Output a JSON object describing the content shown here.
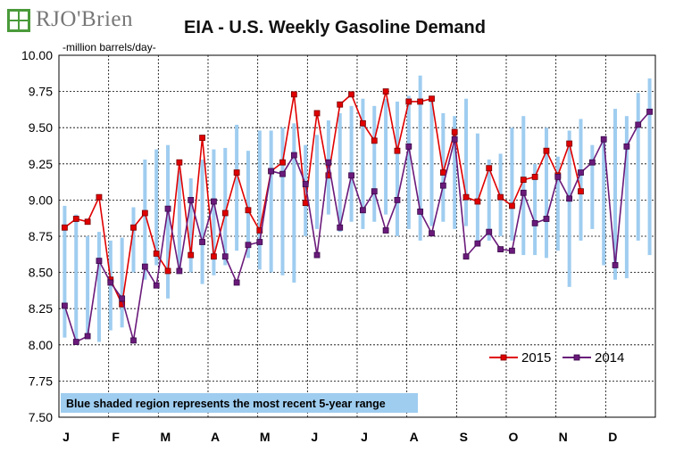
{
  "logo": {
    "text": "RJO'Brien",
    "mark": "rjo-brien-logo-icon",
    "color": "#4a9a3a"
  },
  "chart_data": {
    "type": "line",
    "title": "EIA - U.S. Weekly Gasoline Demand",
    "ylabel": "-million barrels/day-",
    "xlabel": "",
    "ylim": [
      7.5,
      10.0
    ],
    "yticks": [
      "10.00",
      "9.75",
      "9.50",
      "9.25",
      "9.00",
      "8.75",
      "8.50",
      "8.25",
      "8.00",
      "7.75",
      "7.50"
    ],
    "month_labels": [
      "J",
      "F",
      "M",
      "A",
      "M",
      "J",
      "J",
      "A",
      "S",
      "O",
      "N",
      "D"
    ],
    "weeks": 52,
    "grid": true,
    "legend_position": "bottom-right",
    "note": "Blue shaded region represents the most recent 5-year range",
    "colors": {
      "s2015": "#e00000",
      "s2014": "#6a1a7a",
      "range": "#9fcdf0",
      "note_bg": "#9fcdf0"
    },
    "range_low": [
      8.05,
      8.0,
      8.08,
      8.02,
      8.1,
      8.12,
      8.5,
      8.45,
      8.55,
      8.32,
      8.5,
      8.5,
      8.42,
      8.48,
      8.55,
      8.65,
      8.6,
      8.52,
      8.5,
      8.48,
      8.43,
      8.75,
      8.8,
      8.9,
      8.78,
      8.85,
      8.8,
      8.85,
      8.9,
      8.75,
      8.8,
      8.72,
      8.82,
      8.85,
      8.8,
      8.82,
      8.7,
      8.72,
      8.75,
      8.72,
      8.62,
      8.62,
      8.6,
      8.65,
      8.4,
      8.72,
      8.8,
      8.55,
      8.45,
      8.46,
      8.72,
      8.62
    ],
    "range_high": [
      8.96,
      8.9,
      8.75,
      8.78,
      8.72,
      8.74,
      8.95,
      9.28,
      9.35,
      9.38,
      9.2,
      9.15,
      9.28,
      9.35,
      9.36,
      9.52,
      9.34,
      9.48,
      9.48,
      9.5,
      9.53,
      9.38,
      9.45,
      9.55,
      9.6,
      9.65,
      9.7,
      9.65,
      9.7,
      9.68,
      9.72,
      9.86,
      9.72,
      9.6,
      9.58,
      9.7,
      9.46,
      9.28,
      9.32,
      9.5,
      9.58,
      9.25,
      9.5,
      9.3,
      9.48,
      9.56,
      9.38,
      9.4,
      9.63,
      9.58,
      9.74,
      9.84
    ],
    "series": [
      {
        "name": "2015",
        "color": "#e00000",
        "values": [
          8.81,
          8.87,
          8.85,
          9.02,
          8.45,
          8.28,
          8.81,
          8.91,
          8.63,
          8.51,
          9.26,
          8.62,
          9.43,
          8.61,
          8.91,
          9.19,
          8.93,
          8.79,
          9.2,
          9.26,
          9.73,
          8.98,
          9.6,
          9.17,
          9.66,
          9.73,
          9.53,
          9.41,
          9.75,
          9.34,
          9.68,
          9.68,
          9.7,
          9.19,
          9.47,
          9.02,
          8.99,
          9.22,
          9.02,
          8.96,
          9.14,
          9.16,
          9.34,
          9.17,
          9.39,
          9.06
        ]
      },
      {
        "name": "2014",
        "color": "#6a1a7a",
        "values": [
          8.27,
          8.02,
          8.06,
          8.58,
          8.43,
          8.32,
          8.03,
          8.54,
          8.41,
          8.94,
          8.51,
          9.0,
          8.71,
          8.99,
          8.61,
          8.43,
          8.69,
          8.71,
          9.2,
          9.18,
          9.31,
          9.11,
          8.62,
          9.26,
          8.81,
          9.17,
          8.93,
          9.06,
          8.79,
          9.0,
          9.37,
          8.92,
          8.77,
          9.1,
          9.42,
          8.61,
          8.7,
          8.78,
          8.66,
          8.65,
          9.05,
          8.84,
          8.87,
          9.16,
          9.01,
          9.19,
          9.26,
          9.42,
          8.55,
          9.37,
          9.52,
          9.61
        ]
      }
    ]
  }
}
